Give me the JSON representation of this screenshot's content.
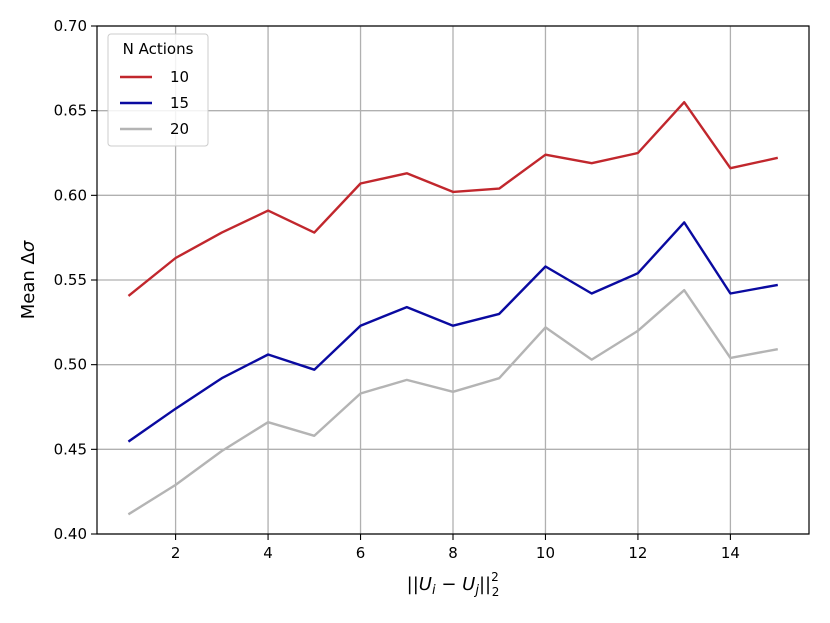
{
  "chart_data": {
    "type": "line",
    "xlabel": "||U_i − U_j||²₂",
    "ylabel": "Mean Δσ",
    "xlim": [
      0.3,
      15.7
    ],
    "ylim": [
      0.4,
      0.7
    ],
    "x_ticks": [
      2,
      4,
      6,
      8,
      10,
      12,
      14
    ],
    "y_ticks": [
      0.4,
      0.45,
      0.5,
      0.55,
      0.6,
      0.65,
      0.7
    ],
    "grid": true,
    "legend": {
      "title": "N Actions",
      "placement": "top-left"
    },
    "x": [
      1,
      2,
      3,
      4,
      5,
      6,
      7,
      8,
      9,
      10,
      11,
      12,
      13,
      14,
      15
    ],
    "series": [
      {
        "name": "10",
        "color": "#c1272d",
        "values": [
          0.541,
          0.563,
          0.578,
          0.591,
          0.578,
          0.607,
          0.613,
          0.602,
          0.604,
          0.624,
          0.619,
          0.625,
          0.655,
          0.616,
          0.622
        ]
      },
      {
        "name": "15",
        "color": "#0a0aa0",
        "values": [
          0.455,
          0.474,
          0.492,
          0.506,
          0.497,
          0.523,
          0.534,
          0.523,
          0.53,
          0.558,
          0.542,
          0.554,
          0.584,
          0.542,
          0.547
        ]
      },
      {
        "name": "20",
        "color": "#b4b4b4",
        "values": [
          0.412,
          0.429,
          0.449,
          0.466,
          0.458,
          0.483,
          0.491,
          0.484,
          0.492,
          0.522,
          0.503,
          0.52,
          0.544,
          0.504,
          0.509
        ]
      }
    ]
  }
}
